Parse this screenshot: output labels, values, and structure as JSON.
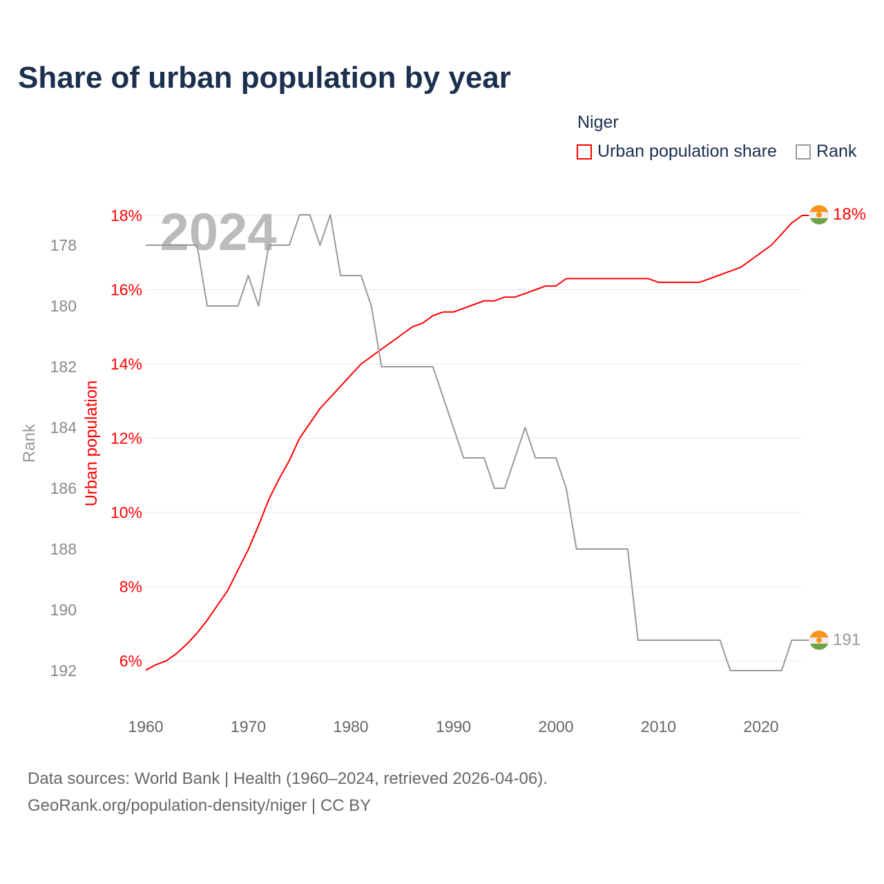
{
  "title": "Share of urban population by year",
  "legend": {
    "title": "Niger",
    "items": [
      {
        "label": "Urban population share",
        "color": "#ff0000"
      },
      {
        "label": "Rank",
        "color": "#999999"
      }
    ]
  },
  "watermark_year": "2024",
  "end_labels": {
    "urban": "18%",
    "rank": "191"
  },
  "footer": {
    "line1": "Data sources: World Bank | Health (1960–2024, retrieved 2026-04-06).",
    "line2": "GeoRank.org/population-density/niger | CC BY"
  },
  "chart_data": {
    "type": "line",
    "title": "Share of urban population by year",
    "xlabel": "",
    "ylabel_left_inner": "Urban population",
    "ylabel_left_outer": "Rank",
    "x_ticks": [
      "1960",
      "1970",
      "1980",
      "1990",
      "2000",
      "2010",
      "2020"
    ],
    "y_ticks_urban": [
      "6%",
      "8%",
      "10%",
      "12%",
      "14%",
      "16%",
      "18%"
    ],
    "y_ticks_rank": [
      "178",
      "180",
      "182",
      "184",
      "186",
      "188",
      "190",
      "192"
    ],
    "xlim": [
      1960,
      2024
    ],
    "ylim_urban": [
      5.74,
      18
    ],
    "ylim_rank": [
      178,
      192
    ],
    "x": [
      1960,
      1961,
      1962,
      1963,
      1964,
      1965,
      1966,
      1967,
      1968,
      1969,
      1970,
      1971,
      1972,
      1973,
      1974,
      1975,
      1976,
      1977,
      1978,
      1979,
      1980,
      1981,
      1982,
      1983,
      1984,
      1985,
      1986,
      1987,
      1988,
      1989,
      1990,
      1991,
      1992,
      1993,
      1994,
      1995,
      1996,
      1997,
      1998,
      1999,
      2000,
      2001,
      2002,
      2003,
      2004,
      2005,
      2006,
      2007,
      2008,
      2009,
      2010,
      2011,
      2012,
      2013,
      2014,
      2015,
      2016,
      2017,
      2018,
      2019,
      2020,
      2021,
      2022,
      2023,
      2024
    ],
    "series": [
      {
        "name": "Urban population share",
        "axis": "urban",
        "color": "#ff0000",
        "values": [
          5.75,
          5.9,
          6.0,
          6.2,
          6.45,
          6.75,
          7.1,
          7.5,
          7.9,
          8.45,
          9.0,
          9.65,
          10.35,
          10.9,
          11.4,
          12.0,
          12.4,
          12.8,
          13.1,
          13.4,
          13.7,
          14.0,
          14.2,
          14.4,
          14.6,
          14.8,
          15.0,
          15.1,
          15.3,
          15.4,
          15.4,
          15.5,
          15.6,
          15.7,
          15.7,
          15.8,
          15.8,
          15.9,
          16.0,
          16.1,
          16.1,
          16.3,
          16.3,
          16.3,
          16.3,
          16.3,
          16.3,
          16.3,
          16.3,
          16.3,
          16.2,
          16.2,
          16.2,
          16.2,
          16.2,
          16.3,
          16.4,
          16.5,
          16.6,
          16.8,
          17.0,
          17.2,
          17.5,
          17.8,
          18.0
        ]
      },
      {
        "name": "Rank",
        "axis": "rank",
        "color": "#999999",
        "values": [
          178,
          178,
          178,
          178,
          178,
          178,
          180,
          180,
          180,
          180,
          179,
          180,
          178,
          178,
          178,
          177,
          177,
          178,
          177,
          179,
          179,
          179,
          180,
          182,
          182,
          182,
          182,
          182,
          182,
          183,
          184,
          185,
          185,
          185,
          186,
          186,
          185,
          184,
          185,
          185,
          185,
          186,
          188,
          188,
          188,
          188,
          188,
          188,
          191,
          191,
          191,
          191,
          191,
          191,
          191,
          191,
          191,
          192,
          192,
          192,
          192,
          192,
          192,
          191,
          191
        ]
      }
    ],
    "grid": true,
    "legend_position": "top-right"
  }
}
